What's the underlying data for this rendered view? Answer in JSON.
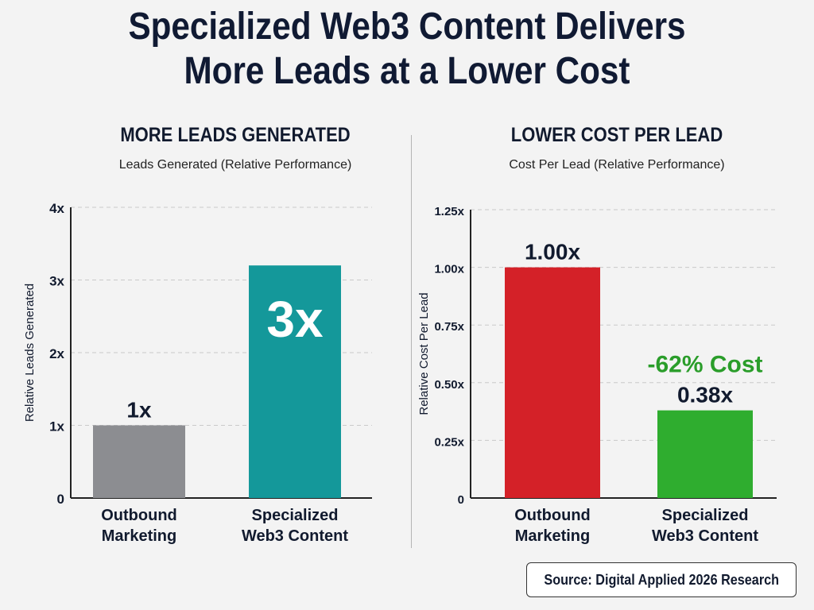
{
  "title": {
    "line1": "Specialized Web3 Content Delivers",
    "line2": "More Leads at a Lower Cost"
  },
  "source": "Source: Digital Applied 2026 Research",
  "colors": {
    "outbound_gray": "#8c8d91",
    "web3_teal": "#14989a",
    "outbound_red": "#d42128",
    "web3_green": "#2fad2f",
    "savings_green": "#2a9d2a",
    "title_navy": "#101a33"
  },
  "chart_data": [
    {
      "type": "bar",
      "title": "MORE LEADS GENERATED",
      "subtitle": "Leads Generated (Relative Performance)",
      "ylabel": "Relative Leads Generated",
      "ylim": [
        0,
        4
      ],
      "yticks": [
        0,
        1,
        2,
        3,
        4
      ],
      "ytick_labels": [
        "0",
        "1x",
        "2x",
        "3x",
        "4x"
      ],
      "grid": true,
      "categories": [
        [
          "Outbound",
          "Marketing"
        ],
        [
          "Specialized",
          "Web3 Content"
        ]
      ],
      "values": [
        1,
        3.2
      ],
      "data_labels": [
        "1x",
        "3x"
      ],
      "data_label_positions": [
        "above",
        "inside"
      ],
      "bar_colors": [
        "#8c8d91",
        "#14989a"
      ]
    },
    {
      "type": "bar",
      "title": "LOWER COST PER LEAD",
      "subtitle": "Cost Per Lead (Relative Performance)",
      "ylabel": "Relative Cost Per Lead",
      "ylim": [
        0,
        1.25
      ],
      "yticks": [
        0,
        0.25,
        0.5,
        0.75,
        1.0,
        1.25
      ],
      "ytick_labels": [
        "0",
        "0.25x",
        "0.50x",
        "0.75x",
        "1.00x",
        "1.25x"
      ],
      "grid": true,
      "categories": [
        [
          "Outbound",
          "Marketing"
        ],
        [
          "Specialized",
          "Web3 Content"
        ]
      ],
      "values": [
        1.0,
        0.38
      ],
      "data_labels": [
        "1.00x",
        "0.38x"
      ],
      "data_label_positions": [
        "above",
        "above"
      ],
      "bar_colors": [
        "#d42128",
        "#2fad2f"
      ],
      "annotation": "-62% Cost"
    }
  ]
}
